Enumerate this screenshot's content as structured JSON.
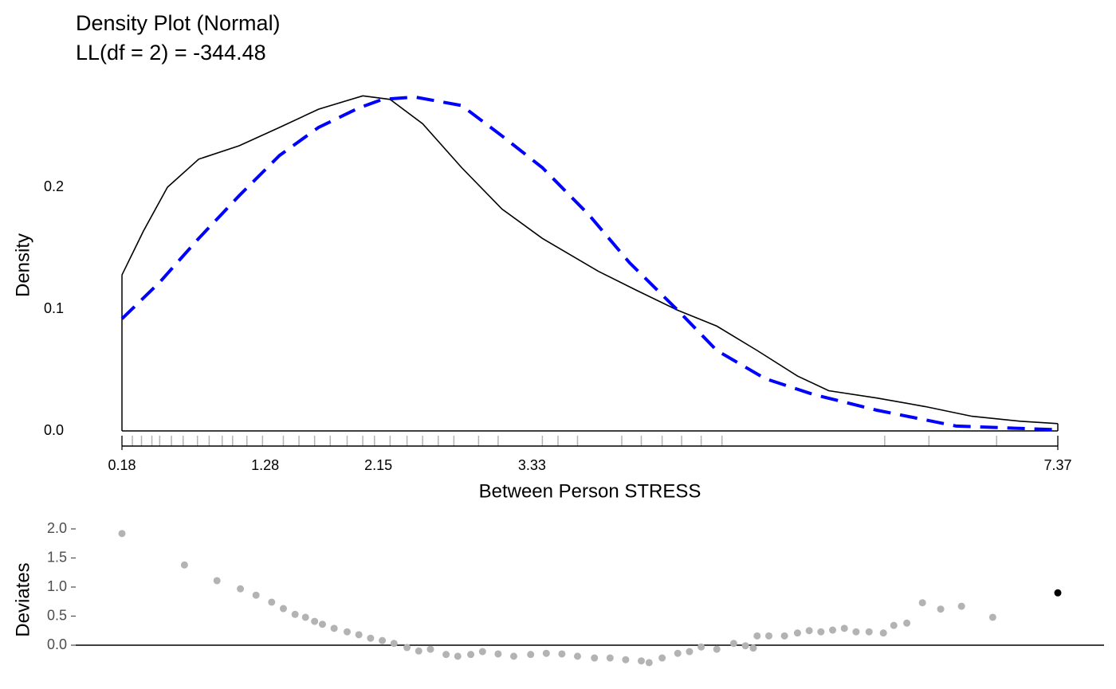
{
  "chart_data": [
    {
      "type": "line",
      "title": "Density Plot (Normal)",
      "subtitle": "LL(df = 2) = -344.48",
      "x_label": "Between Person STRESS",
      "y_label": "Density",
      "xlim": [
        0.18,
        7.37
      ],
      "xticks": [
        0.18,
        1.28,
        2.15,
        3.33,
        7.37
      ],
      "ylim": [
        0,
        0.28
      ],
      "yticks": [
        {
          "value": 0,
          "label": "0.0"
        },
        0.1,
        0.2
      ],
      "series": [
        {
          "color": "#000000",
          "dashed": false,
          "x": [
            0.18,
            0.345,
            0.53,
            0.77,
            1.08,
            1.39,
            1.69,
            2.03,
            2.24,
            2.49,
            2.79,
            3.1,
            3.41,
            3.84,
            4.14,
            4.45,
            4.75,
            5.06,
            5.37,
            5.61,
            5.98,
            6.35,
            6.71,
            7.08,
            7.37
          ],
          "values": [
            0.128,
            0.164,
            0.2,
            0.223,
            0.234,
            0.249,
            0.264,
            0.275,
            0.272,
            0.252,
            0.216,
            0.182,
            0.158,
            0.131,
            0.115,
            0.099,
            0.086,
            0.066,
            0.045,
            0.033,
            0.027,
            0.02,
            0.012,
            0.008,
            0.006
          ]
        },
        {
          "color": "#0000ff",
          "dashed": true,
          "x": [
            0.18,
            0.47,
            0.77,
            1.08,
            1.39,
            1.69,
            2.0,
            2.18,
            2.43,
            2.79,
            3.1,
            3.41,
            3.77,
            4.08,
            4.45,
            4.75,
            5.12,
            5.49,
            5.98,
            6.59,
            7.37
          ],
          "values": [
            0.092,
            0.122,
            0.158,
            0.193,
            0.226,
            0.249,
            0.265,
            0.272,
            0.274,
            0.267,
            0.242,
            0.216,
            0.177,
            0.138,
            0.099,
            0.066,
            0.043,
            0.03,
            0.017,
            0.004,
            0.001
          ]
        }
      ],
      "rug": [
        0.18,
        0.26,
        0.33,
        0.41,
        0.47,
        0.56,
        0.65,
        0.76,
        0.85,
        0.95,
        1.03,
        1.14,
        1.26,
        1.42,
        1.54,
        1.66,
        1.78,
        1.91,
        2.03,
        2.12,
        2.24,
        2.37,
        2.49,
        2.61,
        2.73,
        2.92,
        3.07,
        3.41,
        3.53,
        3.68,
        4.02,
        4.17,
        4.33,
        4.48,
        4.63,
        4.79,
        6.04,
        6.38,
        6.9,
        7.37
      ],
      "rug_color": "#b3b3b3"
    },
    {
      "type": "scatter",
      "y_label": "Deviates",
      "xlim": [
        0.18,
        7.37
      ],
      "ylim": [
        -0.4,
        2.1
      ],
      "yticks": [
        {
          "value": 0,
          "label": "0.0"
        },
        {
          "value": 0.5,
          "label": "0.5"
        },
        {
          "value": 1,
          "label": "1.0"
        },
        {
          "value": 1.5,
          "label": "1.5"
        },
        {
          "value": 2,
          "label": "2.0"
        }
      ],
      "series": [
        {
          "color": "#b3b3b3",
          "x": [
            0.18,
            0.66,
            0.91,
            1.09,
            1.21,
            1.33,
            1.42,
            1.51,
            1.59,
            1.66,
            1.72,
            1.81,
            1.91,
            2.0,
            2.09,
            2.18,
            2.27,
            2.37,
            2.46,
            2.55,
            2.67,
            2.76,
            2.86,
            2.95,
            3.07,
            3.19,
            3.32,
            3.44,
            3.56,
            3.68,
            3.81,
            3.93,
            4.05,
            4.17,
            4.23,
            4.33,
            4.45,
            4.54,
            4.63,
            4.75,
            4.88,
            4.97,
            5.03,
            5.06,
            5.15,
            5.27,
            5.37,
            5.46,
            5.55,
            5.64,
            5.73,
            5.82,
            5.92,
            6.03,
            6.11,
            6.21,
            6.33,
            6.47,
            6.63,
            6.87
          ],
          "values": [
            1.92,
            1.38,
            1.11,
            0.97,
            0.86,
            0.74,
            0.63,
            0.53,
            0.48,
            0.41,
            0.36,
            0.29,
            0.23,
            0.18,
            0.12,
            0.08,
            0.03,
            -0.04,
            -0.1,
            -0.07,
            -0.16,
            -0.19,
            -0.16,
            -0.11,
            -0.15,
            -0.19,
            -0.16,
            -0.14,
            -0.15,
            -0.19,
            -0.22,
            -0.22,
            -0.25,
            -0.27,
            -0.3,
            -0.22,
            -0.14,
            -0.11,
            -0.03,
            -0.07,
            0.03,
            -0.01,
            -0.05,
            0.16,
            0.16,
            0.16,
            0.21,
            0.25,
            0.23,
            0.26,
            0.29,
            0.23,
            0.23,
            0.21,
            0.34,
            0.38,
            0.73,
            0.62,
            0.67,
            0.48
          ]
        },
        {
          "color": "#000000",
          "x": [
            7.37
          ],
          "values": [
            0.9
          ]
        }
      ]
    }
  ]
}
